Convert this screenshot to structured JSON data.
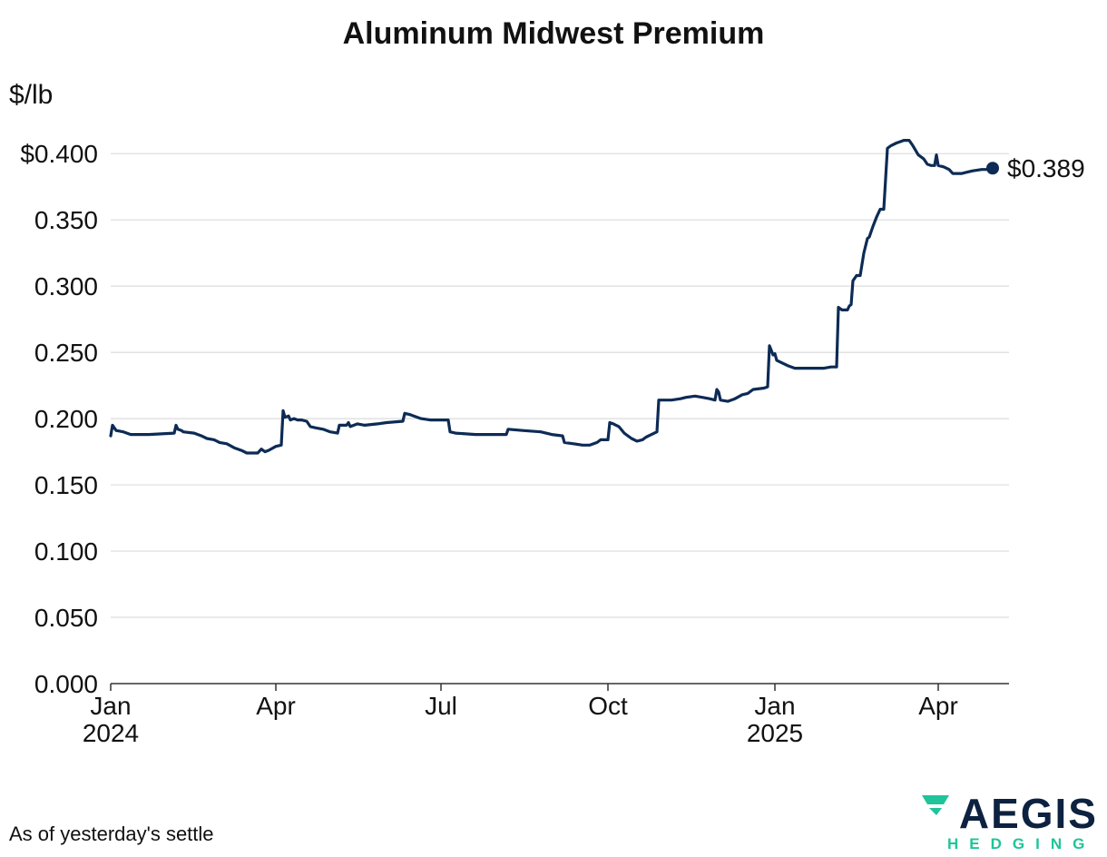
{
  "footnote": "As of yesterday's settle",
  "logo": {
    "name": "AEGIS",
    "sub": "HEDGING",
    "accent": "#1fc49a",
    "navy": "#0d2240"
  },
  "chart_data": {
    "type": "line",
    "title": "Aluminum Midwest Premium",
    "ylabel": "$/lb",
    "xlabel": "",
    "ylim": [
      0,
      0.42
    ],
    "xlim": [
      "2024-01-01",
      "2025-05-10"
    ],
    "grid": true,
    "legend": "none",
    "line_color": "#0d2b55",
    "y_ticks": [
      {
        "value": 0.0,
        "label": "0.000"
      },
      {
        "value": 0.05,
        "label": "0.050"
      },
      {
        "value": 0.1,
        "label": "0.100"
      },
      {
        "value": 0.15,
        "label": "0.150"
      },
      {
        "value": 0.2,
        "label": "0.200"
      },
      {
        "value": 0.25,
        "label": "0.250"
      },
      {
        "value": 0.3,
        "label": "0.300"
      },
      {
        "value": 0.35,
        "label": "0.350"
      },
      {
        "value": 0.4,
        "label": "$0.400"
      }
    ],
    "x_ticks": [
      {
        "date": "2024-01-01",
        "label": "Jan",
        "sublabel": "2024"
      },
      {
        "date": "2024-04-01",
        "label": "Apr",
        "sublabel": ""
      },
      {
        "date": "2024-07-01",
        "label": "Jul",
        "sublabel": ""
      },
      {
        "date": "2024-10-01",
        "label": "Oct",
        "sublabel": ""
      },
      {
        "date": "2025-01-01",
        "label": "Jan",
        "sublabel": "2025"
      },
      {
        "date": "2025-04-01",
        "label": "Apr",
        "sublabel": ""
      }
    ],
    "end_label": "$0.389",
    "series": [
      {
        "points": [
          [
            "2024-01-01",
            0.187
          ],
          [
            "2024-01-02",
            0.195
          ],
          [
            "2024-01-04",
            0.191
          ],
          [
            "2024-01-08",
            0.19
          ],
          [
            "2024-01-12",
            0.188
          ],
          [
            "2024-01-22",
            0.188
          ],
          [
            "2024-02-05",
            0.189
          ],
          [
            "2024-02-06",
            0.195
          ],
          [
            "2024-02-07",
            0.192
          ],
          [
            "2024-02-09",
            0.191
          ],
          [
            "2024-02-10",
            0.19
          ],
          [
            "2024-02-16",
            0.189
          ],
          [
            "2024-02-20",
            0.187
          ],
          [
            "2024-02-23",
            0.185
          ],
          [
            "2024-02-27",
            0.184
          ],
          [
            "2024-03-01",
            0.182
          ],
          [
            "2024-03-05",
            0.181
          ],
          [
            "2024-03-09",
            0.178
          ],
          [
            "2024-03-13",
            0.176
          ],
          [
            "2024-03-16",
            0.174
          ],
          [
            "2024-03-22",
            0.174
          ],
          [
            "2024-03-24",
            0.177
          ],
          [
            "2024-03-26",
            0.175
          ],
          [
            "2024-03-28",
            0.176
          ],
          [
            "2024-04-01",
            0.179
          ],
          [
            "2024-04-04",
            0.18
          ],
          [
            "2024-04-05",
            0.206
          ],
          [
            "2024-04-06",
            0.201
          ],
          [
            "2024-04-08",
            0.202
          ],
          [
            "2024-04-09",
            0.199
          ],
          [
            "2024-04-11",
            0.2
          ],
          [
            "2024-04-13",
            0.199
          ],
          [
            "2024-04-15",
            0.199
          ],
          [
            "2024-04-18",
            0.198
          ],
          [
            "2024-04-20",
            0.194
          ],
          [
            "2024-04-23",
            0.193
          ],
          [
            "2024-04-27",
            0.192
          ],
          [
            "2024-05-01",
            0.19
          ],
          [
            "2024-05-05",
            0.189
          ],
          [
            "2024-05-06",
            0.195
          ],
          [
            "2024-05-10",
            0.195
          ],
          [
            "2024-05-11",
            0.197
          ],
          [
            "2024-05-12",
            0.194
          ],
          [
            "2024-05-14",
            0.195
          ],
          [
            "2024-05-16",
            0.196
          ],
          [
            "2024-05-20",
            0.195
          ],
          [
            "2024-05-27",
            0.196
          ],
          [
            "2024-06-01",
            0.197
          ],
          [
            "2024-06-10",
            0.198
          ],
          [
            "2024-06-11",
            0.204
          ],
          [
            "2024-06-14",
            0.203
          ],
          [
            "2024-06-16",
            0.202
          ],
          [
            "2024-06-20",
            0.2
          ],
          [
            "2024-06-25",
            0.199
          ],
          [
            "2024-07-03",
            0.199
          ],
          [
            "2024-07-05",
            0.199
          ],
          [
            "2024-07-06",
            0.19
          ],
          [
            "2024-07-09",
            0.189
          ],
          [
            "2024-07-20",
            0.188
          ],
          [
            "2024-08-06",
            0.188
          ],
          [
            "2024-08-07",
            0.192
          ],
          [
            "2024-08-15",
            0.191
          ],
          [
            "2024-08-25",
            0.19
          ],
          [
            "2024-08-31",
            0.188
          ],
          [
            "2024-09-06",
            0.187
          ],
          [
            "2024-09-07",
            0.182
          ],
          [
            "2024-09-12",
            0.181
          ],
          [
            "2024-09-17",
            0.18
          ],
          [
            "2024-09-21",
            0.18
          ],
          [
            "2024-09-25",
            0.182
          ],
          [
            "2024-09-27",
            0.184
          ],
          [
            "2024-10-01",
            0.184
          ],
          [
            "2024-10-02",
            0.197
          ],
          [
            "2024-10-04",
            0.196
          ],
          [
            "2024-10-07",
            0.194
          ],
          [
            "2024-10-10",
            0.189
          ],
          [
            "2024-10-12",
            0.187
          ],
          [
            "2024-10-14",
            0.185
          ],
          [
            "2024-10-17",
            0.183
          ],
          [
            "2024-10-20",
            0.184
          ],
          [
            "2024-10-22",
            0.186
          ],
          [
            "2024-10-25",
            0.188
          ],
          [
            "2024-10-28",
            0.19
          ],
          [
            "2024-10-29",
            0.214
          ],
          [
            "2024-11-05",
            0.214
          ],
          [
            "2024-11-10",
            0.215
          ],
          [
            "2024-11-13",
            0.216
          ],
          [
            "2024-11-18",
            0.217
          ],
          [
            "2024-11-22",
            0.216
          ],
          [
            "2024-11-26",
            0.215
          ],
          [
            "2024-11-29",
            0.214
          ],
          [
            "2024-11-30",
            0.222
          ],
          [
            "2024-12-01",
            0.22
          ],
          [
            "2024-12-02",
            0.214
          ],
          [
            "2024-12-06",
            0.213
          ],
          [
            "2024-12-10",
            0.215
          ],
          [
            "2024-12-14",
            0.218
          ],
          [
            "2024-12-17",
            0.219
          ],
          [
            "2024-12-20",
            0.222
          ],
          [
            "2024-12-26",
            0.223
          ],
          [
            "2024-12-28",
            0.224
          ],
          [
            "2024-12-29",
            0.255
          ],
          [
            "2024-12-31",
            0.248
          ],
          [
            "2025-01-01",
            0.249
          ],
          [
            "2025-01-02",
            0.244
          ],
          [
            "2025-01-05",
            0.242
          ],
          [
            "2025-01-08",
            0.24
          ],
          [
            "2025-01-12",
            0.238
          ],
          [
            "2025-01-20",
            0.238
          ],
          [
            "2025-01-28",
            0.238
          ],
          [
            "2025-02-01",
            0.239
          ],
          [
            "2025-02-04",
            0.239
          ],
          [
            "2025-02-05",
            0.284
          ],
          [
            "2025-02-07",
            0.282
          ],
          [
            "2025-02-10",
            0.282
          ],
          [
            "2025-02-11",
            0.285
          ],
          [
            "2025-02-12",
            0.286
          ],
          [
            "2025-02-13",
            0.304
          ],
          [
            "2025-02-15",
            0.308
          ],
          [
            "2025-02-17",
            0.308
          ],
          [
            "2025-02-19",
            0.325
          ],
          [
            "2025-02-21",
            0.336
          ],
          [
            "2025-02-22",
            0.337
          ],
          [
            "2025-02-24",
            0.345
          ],
          [
            "2025-02-26",
            0.352
          ],
          [
            "2025-02-28",
            0.358
          ],
          [
            "2025-03-02",
            0.358
          ],
          [
            "2025-03-04",
            0.404
          ],
          [
            "2025-03-06",
            0.406
          ],
          [
            "2025-03-09",
            0.408
          ],
          [
            "2025-03-11",
            0.409
          ],
          [
            "2025-03-13",
            0.41
          ],
          [
            "2025-03-16",
            0.41
          ],
          [
            "2025-03-18",
            0.406
          ],
          [
            "2025-03-21",
            0.399
          ],
          [
            "2025-03-24",
            0.396
          ],
          [
            "2025-03-26",
            0.392
          ],
          [
            "2025-03-28",
            0.391
          ],
          [
            "2025-03-30",
            0.391
          ],
          [
            "2025-03-31",
            0.399
          ],
          [
            "2025-04-01",
            0.391
          ],
          [
            "2025-04-04",
            0.39
          ],
          [
            "2025-04-07",
            0.388
          ],
          [
            "2025-04-09",
            0.385
          ],
          [
            "2025-04-14",
            0.385
          ],
          [
            "2025-04-17",
            0.386
          ],
          [
            "2025-04-20",
            0.387
          ],
          [
            "2025-04-25",
            0.388
          ],
          [
            "2025-04-28",
            0.388
          ],
          [
            "2025-05-01",
            0.389
          ]
        ]
      }
    ]
  }
}
